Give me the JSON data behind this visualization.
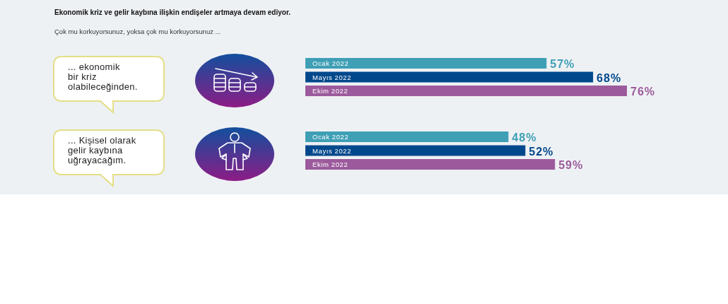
{
  "chart_data": {
    "type": "bar",
    "orientation": "horizontal",
    "title": "Ekonomik kriz ve gelir kaybına ilişkin endişeler artmaya devam ediyor.",
    "subtitle": "Çok mu korkuyorsunuz, yoksa çok mu korkuyorsunuz ...",
    "categories": [
      "... ekonomik\nbir kriz\nolabileceğinden.",
      "... Kişisel olarak\ngelir kaybına\nuğrayacağım."
    ],
    "series": [
      {
        "name": "Ocak 2022",
        "color": "#3e9fb5",
        "values": [
          57,
          48
        ],
        "value_labels": [
          "57%",
          "48%"
        ]
      },
      {
        "name": "Mayıs 2022",
        "color": "#00488c",
        "values": [
          68,
          52
        ],
        "value_labels": [
          "68%",
          "52%"
        ]
      },
      {
        "name": "Ekim 2022",
        "color": "#9c5a9c",
        "values": [
          76,
          59
        ],
        "value_labels": [
          "76%",
          "59%"
        ]
      }
    ]
  }
}
